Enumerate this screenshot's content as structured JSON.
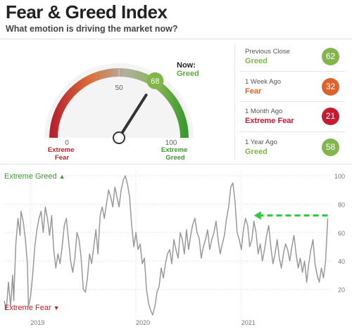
{
  "header": {
    "title": "Fear & Greed Index",
    "subtitle": "What emotion is driving the market now?"
  },
  "gauge": {
    "value": 68,
    "now_label": "Now:",
    "now_rating": "Greed",
    "ticks": {
      "min": "0",
      "mid": "50",
      "max": "100"
    },
    "extreme_fear_label": [
      "Extreme",
      "Fear"
    ],
    "extreme_greed_label": [
      "Extreme",
      "Greed"
    ]
  },
  "history": [
    {
      "label": "Previous Close",
      "rating": "Greed",
      "value": "62",
      "color": "#82b54b"
    },
    {
      "label": "1 Week Ago",
      "rating": "Fear",
      "value": "32",
      "color": "#e0622b"
    },
    {
      "label": "1 Month Ago",
      "rating": "Extreme Fear",
      "value": "21",
      "color": "#c41b30"
    },
    {
      "label": "1 Year Ago",
      "rating": "Greed",
      "value": "58",
      "color": "#82b54b"
    }
  ],
  "colors": {
    "extreme_fear": "#b8222e",
    "fear": "#d9703a",
    "greed": "#5ca93b",
    "extreme_greed": "#3d9a32",
    "line": "#999999",
    "arrow": "#2ecc40"
  },
  "chart_data": {
    "type": "line",
    "title": "",
    "xlabel": "",
    "ylabel": "",
    "ylim": [
      0,
      100
    ],
    "yticks": [
      "20",
      "40",
      "60",
      "80",
      "100"
    ],
    "xticks": [
      {
        "label": "2019",
        "x": 2019.0
      },
      {
        "label": "2020",
        "x": 2020.0
      },
      {
        "label": "2021",
        "x": 2021.0
      }
    ],
    "extreme_greed_label": "Extreme Greed",
    "extreme_fear_label": "Extreme Fear",
    "grid": true,
    "series": [
      {
        "values": [
          [
            2018.75,
            12
          ],
          [
            2018.77,
            6
          ],
          [
            2018.79,
            25
          ],
          [
            2018.81,
            8
          ],
          [
            2018.83,
            30
          ],
          [
            2018.84,
            12
          ],
          [
            2018.86,
            52
          ],
          [
            2018.88,
            70
          ],
          [
            2018.9,
            58
          ],
          [
            2018.91,
            75
          ],
          [
            2018.93,
            68
          ],
          [
            2018.95,
            56
          ],
          [
            2018.97,
            38
          ],
          [
            2018.98,
            8
          ],
          [
            2019.0,
            15
          ],
          [
            2019.02,
            30
          ],
          [
            2019.04,
            50
          ],
          [
            2019.06,
            62
          ],
          [
            2019.08,
            70
          ],
          [
            2019.1,
            75
          ],
          [
            2019.12,
            60
          ],
          [
            2019.14,
            78
          ],
          [
            2019.16,
            70
          ],
          [
            2019.18,
            58
          ],
          [
            2019.2,
            72
          ],
          [
            2019.22,
            48
          ],
          [
            2019.24,
            35
          ],
          [
            2019.26,
            45
          ],
          [
            2019.28,
            38
          ],
          [
            2019.3,
            50
          ],
          [
            2019.32,
            65
          ],
          [
            2019.34,
            70
          ],
          [
            2019.36,
            55
          ],
          [
            2019.38,
            40
          ],
          [
            2019.4,
            32
          ],
          [
            2019.42,
            42
          ],
          [
            2019.44,
            60
          ],
          [
            2019.46,
            55
          ],
          [
            2019.48,
            42
          ],
          [
            2019.5,
            20
          ],
          [
            2019.52,
            18
          ],
          [
            2019.54,
            28
          ],
          [
            2019.56,
            45
          ],
          [
            2019.58,
            38
          ],
          [
            2019.6,
            50
          ],
          [
            2019.62,
            62
          ],
          [
            2019.64,
            45
          ],
          [
            2019.66,
            72
          ],
          [
            2019.68,
            78
          ],
          [
            2019.7,
            70
          ],
          [
            2019.72,
            80
          ],
          [
            2019.74,
            90
          ],
          [
            2019.76,
            85
          ],
          [
            2019.78,
            78
          ],
          [
            2019.8,
            92
          ],
          [
            2019.82,
            85
          ],
          [
            2019.84,
            78
          ],
          [
            2019.86,
            90
          ],
          [
            2019.88,
            97
          ],
          [
            2019.9,
            100
          ],
          [
            2019.92,
            94
          ],
          [
            2019.94,
            85
          ],
          [
            2019.96,
            65
          ],
          [
            2019.98,
            50
          ],
          [
            2020.0,
            60
          ],
          [
            2020.02,
            48
          ],
          [
            2020.04,
            52
          ],
          [
            2020.06,
            38
          ],
          [
            2020.08,
            42
          ],
          [
            2020.1,
            20
          ],
          [
            2020.12,
            10
          ],
          [
            2020.14,
            5
          ],
          [
            2020.16,
            2
          ],
          [
            2020.18,
            8
          ],
          [
            2020.2,
            18
          ],
          [
            2020.22,
            22
          ],
          [
            2020.24,
            35
          ],
          [
            2020.26,
            28
          ],
          [
            2020.28,
            38
          ],
          [
            2020.3,
            45
          ],
          [
            2020.32,
            48
          ],
          [
            2020.34,
            38
          ],
          [
            2020.36,
            55
          ],
          [
            2020.38,
            48
          ],
          [
            2020.4,
            42
          ],
          [
            2020.42,
            60
          ],
          [
            2020.44,
            55
          ],
          [
            2020.46,
            45
          ],
          [
            2020.48,
            62
          ],
          [
            2020.5,
            48
          ],
          [
            2020.52,
            58
          ],
          [
            2020.54,
            66
          ],
          [
            2020.56,
            70
          ],
          [
            2020.58,
            60
          ],
          [
            2020.6,
            56
          ],
          [
            2020.62,
            42
          ],
          [
            2020.64,
            50
          ],
          [
            2020.66,
            55
          ],
          [
            2020.68,
            62
          ],
          [
            2020.7,
            48
          ],
          [
            2020.72,
            55
          ],
          [
            2020.74,
            60
          ],
          [
            2020.76,
            68
          ],
          [
            2020.78,
            55
          ],
          [
            2020.8,
            45
          ],
          [
            2020.82,
            52
          ],
          [
            2020.84,
            58
          ],
          [
            2020.86,
            70
          ],
          [
            2020.88,
            78
          ],
          [
            2020.9,
            92
          ],
          [
            2020.92,
            95
          ],
          [
            2020.94,
            82
          ],
          [
            2020.96,
            60
          ],
          [
            2020.98,
            55
          ],
          [
            2021.0,
            48
          ],
          [
            2021.02,
            62
          ],
          [
            2021.04,
            70
          ],
          [
            2021.06,
            65
          ],
          [
            2021.08,
            50
          ],
          [
            2021.1,
            55
          ],
          [
            2021.12,
            68
          ],
          [
            2021.14,
            60
          ],
          [
            2021.16,
            45
          ],
          [
            2021.18,
            52
          ],
          [
            2021.2,
            40
          ],
          [
            2021.22,
            48
          ],
          [
            2021.24,
            58
          ],
          [
            2021.26,
            65
          ],
          [
            2021.28,
            50
          ],
          [
            2021.3,
            38
          ],
          [
            2021.32,
            45
          ],
          [
            2021.34,
            55
          ],
          [
            2021.36,
            42
          ],
          [
            2021.38,
            35
          ],
          [
            2021.4,
            45
          ],
          [
            2021.42,
            52
          ],
          [
            2021.44,
            48
          ],
          [
            2021.46,
            40
          ],
          [
            2021.48,
            50
          ],
          [
            2021.5,
            58
          ],
          [
            2021.52,
            45
          ],
          [
            2021.54,
            35
          ],
          [
            2021.56,
            42
          ],
          [
            2021.58,
            32
          ],
          [
            2021.6,
            40
          ],
          [
            2021.62,
            25
          ],
          [
            2021.64,
            38
          ],
          [
            2021.66,
            48
          ],
          [
            2021.68,
            55
          ],
          [
            2021.7,
            38
          ],
          [
            2021.72,
            30
          ],
          [
            2021.74,
            25
          ],
          [
            2021.76,
            35
          ],
          [
            2021.78,
            28
          ],
          [
            2021.8,
            40
          ],
          [
            2021.82,
            70
          ]
        ]
      }
    ],
    "annotation": {
      "type": "arrow",
      "from": [
        2021.82,
        72
      ],
      "to": [
        2021.12,
        72
      ]
    }
  }
}
